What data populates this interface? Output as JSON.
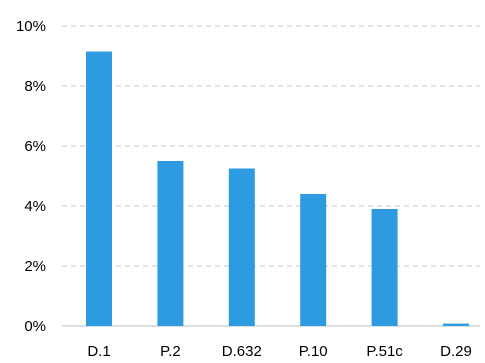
{
  "chart_data": {
    "type": "bar",
    "title": "",
    "xlabel": "",
    "ylabel": "",
    "categories": [
      "D.1",
      "P.2",
      "D.632",
      "P.10",
      "P.51c",
      "D.29"
    ],
    "values": [
      9.15,
      5.5,
      5.25,
      4.4,
      3.9,
      0.08
    ],
    "ylim": [
      0,
      10
    ],
    "yticks": [
      0,
      2,
      4,
      6,
      8,
      10
    ],
    "ytick_labels": [
      "0%",
      "2%",
      "4%",
      "6%",
      "8%",
      "10%"
    ],
    "grid": true,
    "legend": "none",
    "bar_color": "#2e9be0"
  }
}
